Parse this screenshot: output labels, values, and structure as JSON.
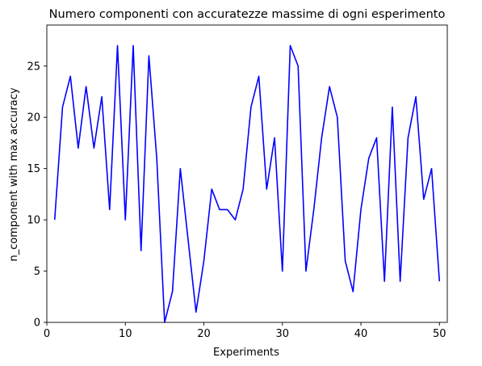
{
  "chart_data": {
    "type": "line",
    "title": "Numero componenti con accuratezze massime di ogni esperimento",
    "xlabel": "Experiments",
    "ylabel": "n_component with max accuracy",
    "xlim": [
      0,
      51
    ],
    "ylim": [
      0,
      29
    ],
    "xticks": [
      0,
      10,
      20,
      30,
      40,
      50
    ],
    "yticks": [
      0,
      5,
      10,
      15,
      20,
      25
    ],
    "grid": false,
    "series": [
      {
        "color": "#0000ff",
        "x": [
          1,
          2,
          3,
          4,
          5,
          6,
          7,
          8,
          9,
          10,
          11,
          12,
          13,
          14,
          15,
          16,
          17,
          18,
          19,
          20,
          21,
          22,
          23,
          24,
          25,
          26,
          27,
          28,
          29,
          30,
          31,
          32,
          33,
          34,
          35,
          36,
          37,
          38,
          39,
          40,
          41,
          42,
          43,
          44,
          45,
          46,
          47,
          48,
          49,
          50
        ],
        "values": [
          10,
          21,
          24,
          17,
          23,
          17,
          22,
          11,
          27,
          10,
          27,
          7,
          26,
          16,
          0,
          3,
          15,
          8,
          1,
          6,
          13,
          11,
          11,
          10,
          13,
          21,
          24,
          13,
          18,
          5,
          27,
          25,
          5,
          11,
          18,
          23,
          20,
          6,
          3,
          11,
          16,
          18,
          4,
          21,
          4,
          18,
          22,
          12,
          15,
          4
        ]
      }
    ]
  }
}
